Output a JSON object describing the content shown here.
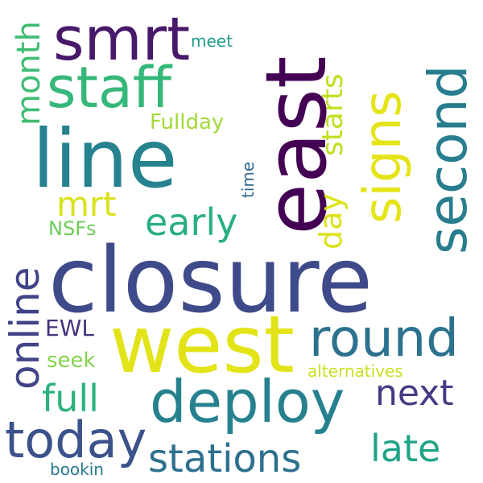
{
  "words": [
    {
      "key": "closure",
      "text": "closure",
      "color": "#3e4a89"
    },
    {
      "key": "west",
      "text": "west",
      "color": "#e2e418"
    },
    {
      "key": "line",
      "text": "line",
      "color": "#25828e"
    },
    {
      "key": "east",
      "text": "east",
      "color": "#440154"
    },
    {
      "key": "deploy",
      "text": "deploy",
      "color": "#26818e"
    },
    {
      "key": "smrt",
      "text": "smrt",
      "color": "#48186a"
    },
    {
      "key": "staff",
      "text": "staff",
      "color": "#35b779"
    },
    {
      "key": "signs",
      "text": "signs",
      "color": "#e5e419"
    },
    {
      "key": "second",
      "text": "second",
      "color": "#287d8e"
    },
    {
      "key": "round",
      "text": "round",
      "color": "#2c728e"
    },
    {
      "key": "today",
      "text": "today",
      "color": "#3b528b"
    },
    {
      "key": "online",
      "text": "online",
      "color": "#414487"
    },
    {
      "key": "stations",
      "text": "stations",
      "color": "#2d708e"
    },
    {
      "key": "early",
      "text": "early",
      "color": "#29af7f"
    },
    {
      "key": "full",
      "text": "full",
      "color": "#2db27d"
    },
    {
      "key": "next",
      "text": "next",
      "color": "#443a83"
    },
    {
      "key": "late",
      "text": "late",
      "color": "#20a386"
    },
    {
      "key": "month",
      "text": "month",
      "color": "#3fbc73"
    },
    {
      "key": "day",
      "text": "day",
      "color": "#dde318"
    },
    {
      "key": "starts",
      "text": "starts",
      "color": "#c2df23"
    },
    {
      "key": "mrt",
      "text": "mrt",
      "color": "#d8e219"
    },
    {
      "key": "fullday",
      "text": "Fullday",
      "color": "#a2da37"
    },
    {
      "key": "seek",
      "text": "seek",
      "color": "#84d44b"
    },
    {
      "key": "nsfs",
      "text": "NSFs",
      "color": "#6ece58"
    },
    {
      "key": "ewl",
      "text": "EWL",
      "color": "#46337e"
    },
    {
      "key": "meet",
      "text": "meet",
      "color": "#1f9a8a"
    },
    {
      "key": "time",
      "text": "time",
      "color": "#31688e"
    },
    {
      "key": "alternatives",
      "text": "alternatives",
      "color": "#c8e020"
    },
    {
      "key": "bookin",
      "text": "bookin",
      "color": "#2a788e"
    }
  ]
}
